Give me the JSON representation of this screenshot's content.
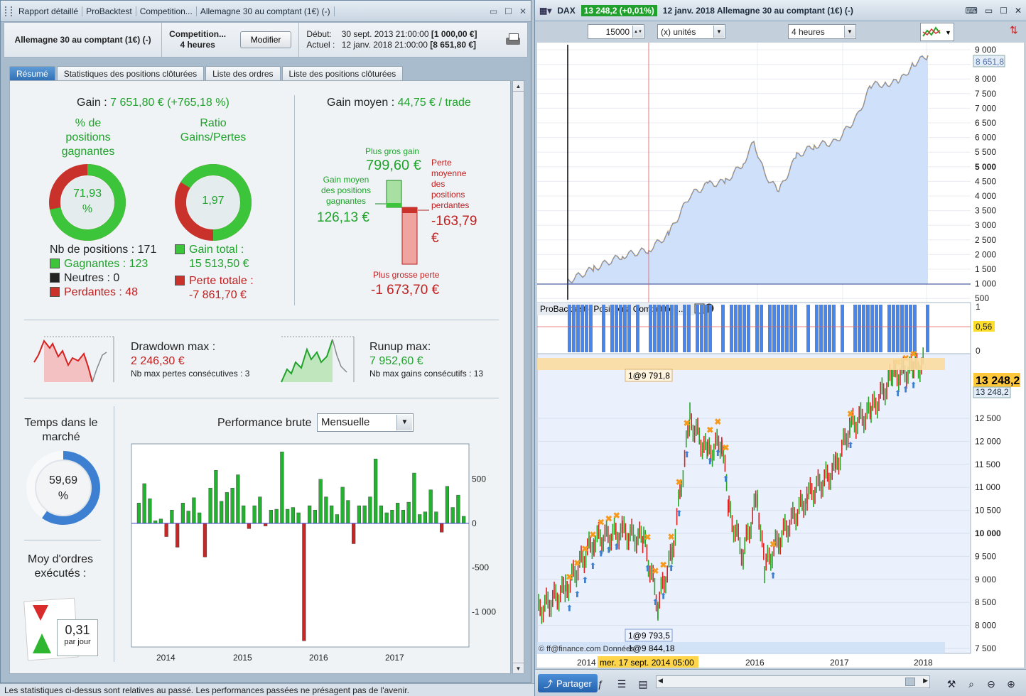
{
  "left": {
    "title_items": [
      "Rapport détaillé",
      "ProBacktest",
      "Competition...",
      "Allemagne 30 au comptant (1€) (-)"
    ],
    "instrument": "Allemagne 30 au comptant (1€) (-)",
    "strategy_name": "Competition...",
    "strategy_tf": "4 heures",
    "modify_label": "Modifier",
    "start_label": "Début:",
    "start_date": "30 sept. 2013 21:00:00",
    "start_value": "[1 000,00 €]",
    "current_label": "Actuel :",
    "current_date": "12 janv. 2018 21:00:00",
    "current_value": "[8 651,80 €]",
    "tabs": [
      "Résumé",
      "Statistiques des positions clôturées",
      "Liste des ordres",
      "Liste des positions clôturées"
    ],
    "gain_label": "Gain :",
    "gain_value": "7 651,80 € (+765,18 %)",
    "pct_win_label": "% de positions gagnantes",
    "pct_win_value": "71,93 %",
    "pct_win_fraction": 0.7193,
    "ratio_label": "Ratio Gains/Pertes",
    "ratio_value": "1,97",
    "ratio_fraction": 0.66,
    "nb_positions_label": "Nb de positions :",
    "nb_positions": "171",
    "winners_label": "Gagnantes :",
    "winners": "123",
    "neutral_label": "Neutres :",
    "neutral": "0",
    "losers_label": "Perdantes :",
    "losers": "48",
    "total_gain_label": "Gain total :",
    "total_gain": "15 513,50 €",
    "total_loss_label": "Perte totale :",
    "total_loss": "-7 861,70 €",
    "avg_gain_label": "Gain moyen :",
    "avg_gain_value": "44,75 € / trade",
    "biggest_gain_label": "Plus gros gain",
    "biggest_gain": "799,60 €",
    "avg_win_label": "Gain moyen des positions gagnantes",
    "avg_win": "126,13 €",
    "avg_loss_label": "Perte moyenne des positions perdantes",
    "avg_loss": "-163,79 €",
    "biggest_loss_label": "Plus grosse perte",
    "biggest_loss": "-1 673,70 €",
    "drawdown_label": "Drawdown max :",
    "drawdown": "2 246,30 €",
    "consec_loss_label": "Nb max pertes consécutives :",
    "consec_loss": "3",
    "runup_label": "Runup max:",
    "runup": "7 952,60 €",
    "consec_gain_label": "Nb max gains consécutifs :",
    "consec_gain": "13",
    "time_in_market_label": "Temps dans le marché",
    "time_in_market": "59,69 %",
    "time_in_market_fraction": 0.5969,
    "avg_orders_label": "Moy d'ordres exécutés :",
    "avg_orders": "0,31",
    "avg_orders_unit": "par jour",
    "perf_label": "Performance brute",
    "perf_select": "Mensuelle",
    "footer": "Les statistiques ci-dessus sont relatives au passé. Les performances passées ne présagent pas de l'avenir."
  },
  "chart_data": {
    "type": "bar",
    "title": "Performance brute",
    "x_ticks": [
      "2014",
      "2015",
      "2016",
      "2017"
    ],
    "y_ticks": [
      "500",
      "0",
      "-500",
      "-1 000"
    ],
    "ylim": [
      -1400,
      900
    ],
    "values": [
      230,
      450,
      280,
      30,
      50,
      -150,
      150,
      -270,
      230,
      140,
      290,
      120,
      -380,
      400,
      600,
      250,
      350,
      400,
      550,
      200,
      -60,
      200,
      300,
      -30,
      150,
      160,
      810,
      160,
      180,
      120,
      -1330,
      200,
      150,
      500,
      300,
      200,
      100,
      410,
      260,
      -230,
      200,
      200,
      300,
      730,
      200,
      120,
      150,
      230,
      150,
      240,
      570,
      100,
      130,
      380,
      130,
      -100,
      420,
      180,
      320,
      80
    ],
    "colors": {
      "positive": "#22b22f",
      "negative": "#c62828"
    }
  },
  "right": {
    "symbol": "DAX",
    "price_badge": "13 248,2 (+0,01%)",
    "title_rest": "12 janv. 2018 Allemagne 30 au comptant (1€) (-)",
    "qty": "15000",
    "unit": "(x) unités",
    "timeframe": "4 heures",
    "equity_axis": [
      "9 000",
      "8 500",
      "8 000",
      "7 500",
      "7 000",
      "6 500",
      "6 000",
      "5 500",
      "5 000",
      "4 500",
      "4 000",
      "3 500",
      "3 000",
      "2 500",
      "2 000",
      "1 500",
      "1 000",
      "500"
    ],
    "equity_last": "8 651,8",
    "positions_title": "ProBacktest - Positions: Competition...",
    "positions_axis": [
      "1",
      "0,56",
      "0"
    ],
    "price_axis": [
      "12 500",
      "12 000",
      "11 500",
      "11 000",
      "10 500",
      "10 000",
      "9 500",
      "9 000",
      "8 500",
      "8 000",
      "7 500"
    ],
    "price_last": "13 248,2",
    "price_last_small": "13 248,2",
    "label_top": "1@9 791,8",
    "label_bot": "1@9 793,5",
    "label_bot2": "1@9 844,18",
    "source": "© ff@finance.com Données",
    "time_labels": [
      "2014",
      "2016",
      "2017",
      "2018"
    ],
    "cursor_time": "mer. 17 sept. 2014 05:00",
    "share_label": "Partager"
  }
}
